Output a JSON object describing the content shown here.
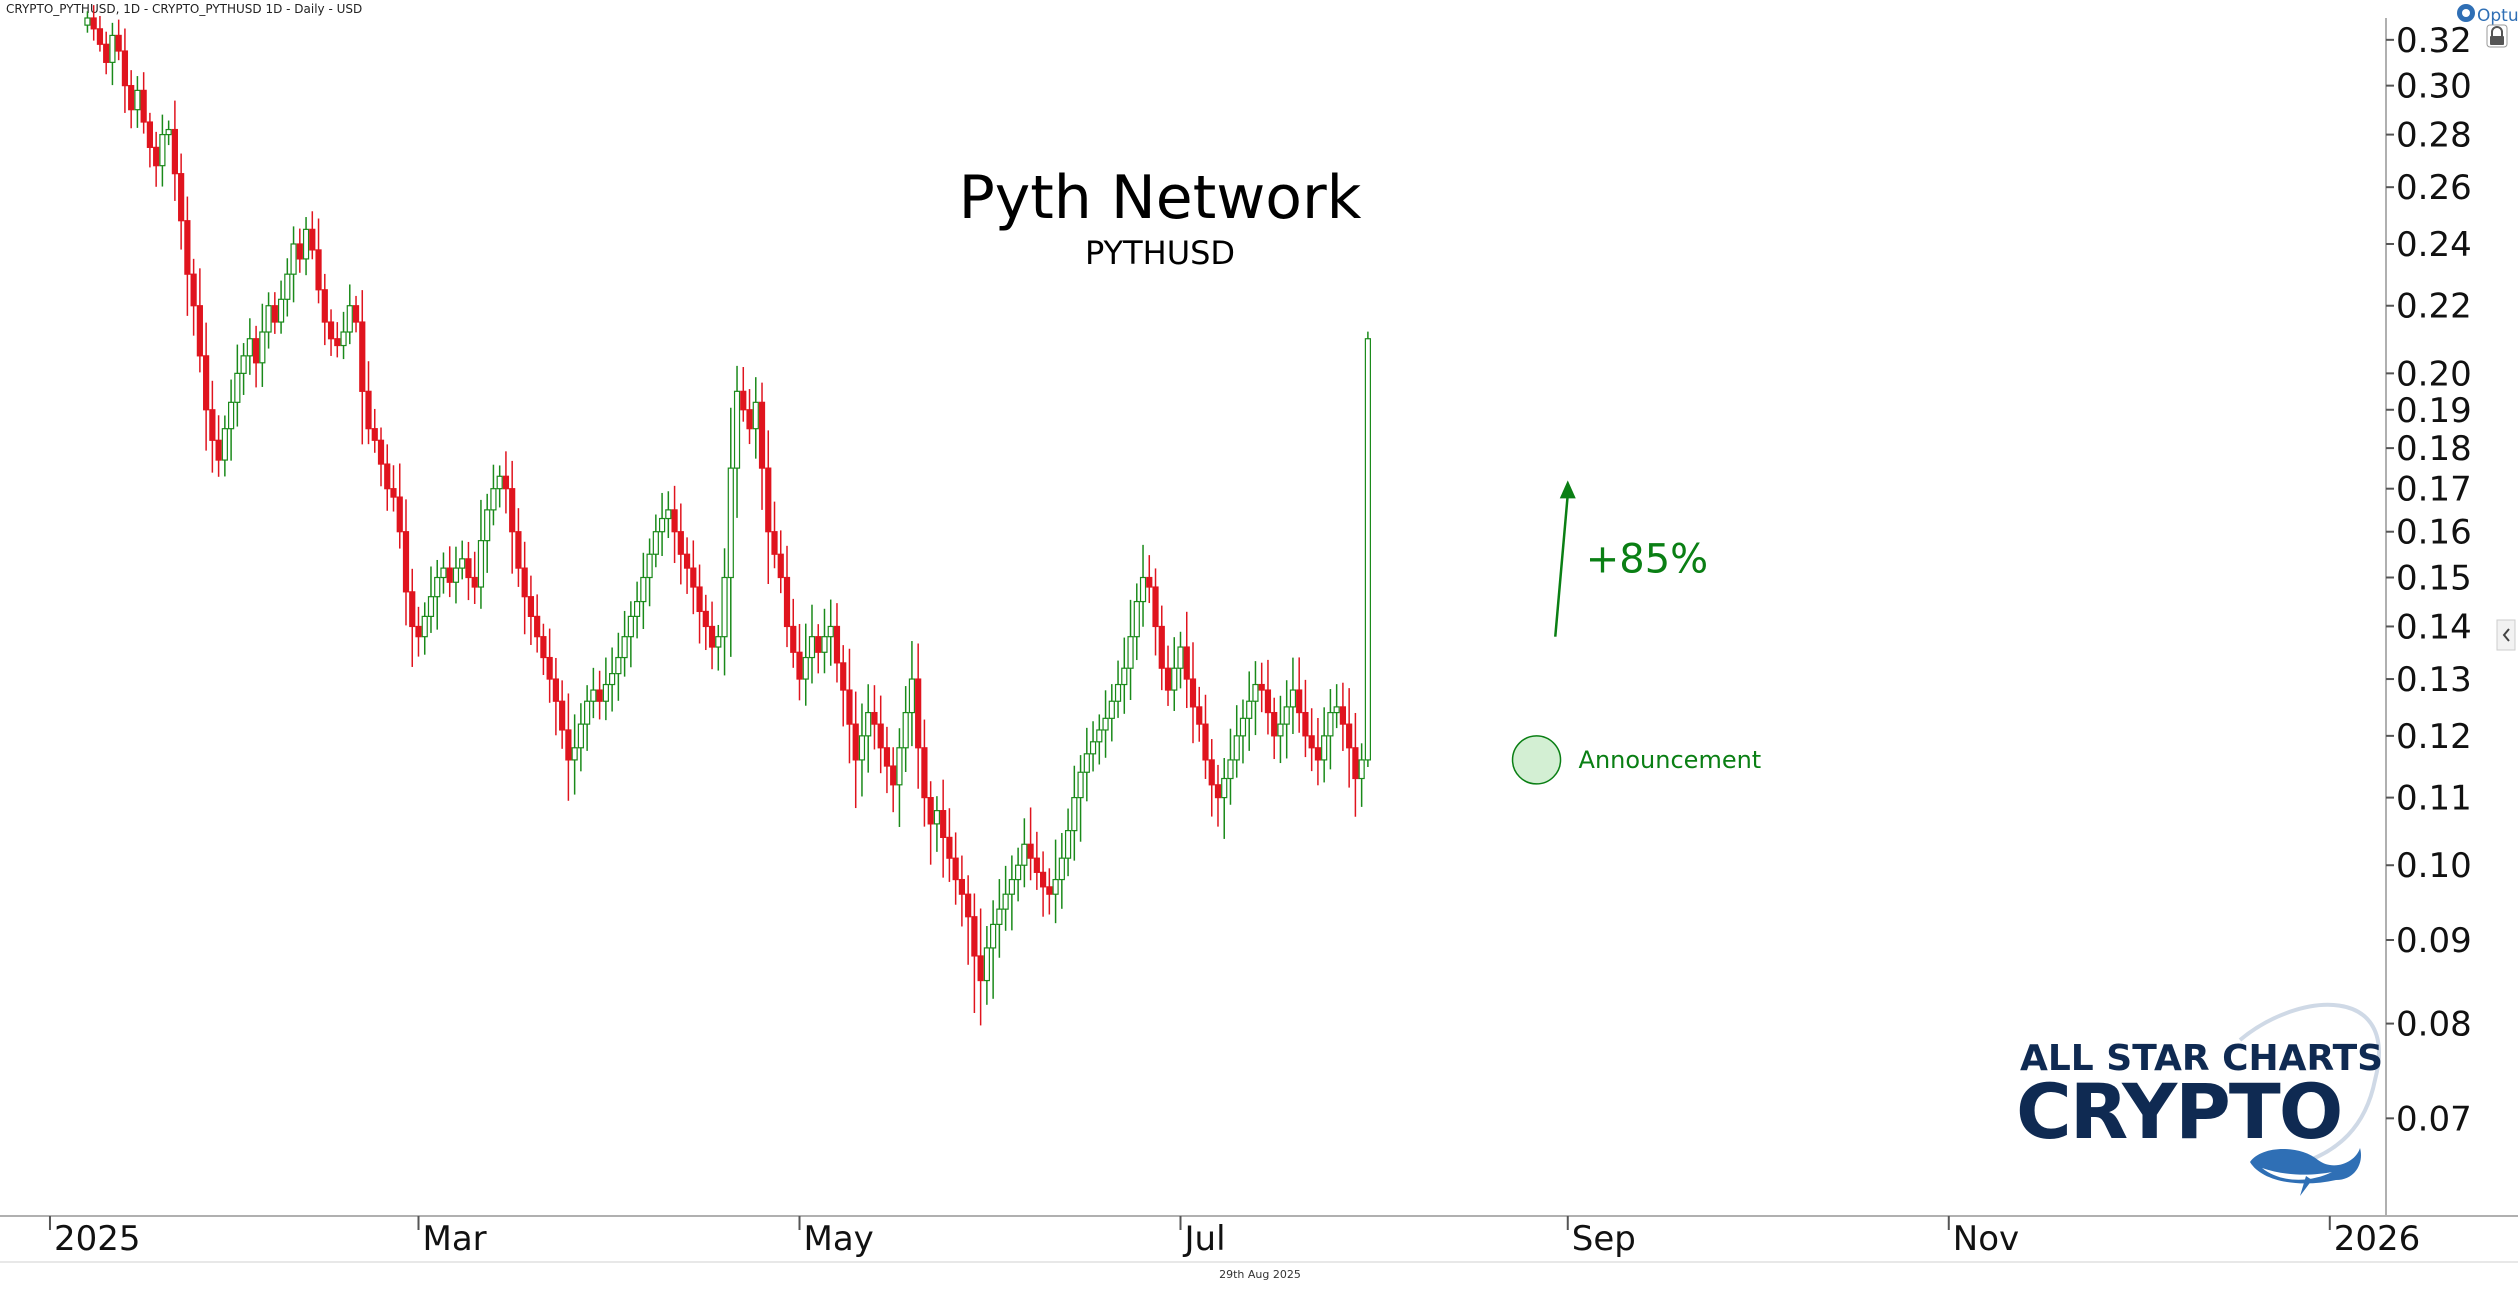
{
  "header": {
    "instrument_info": "CRYPTO_PYTHUSD, 1D - CRYPTO_PYTHUSD 1D - Daily - USD",
    "platform": "Optuma"
  },
  "footer": {
    "date_stamp": "29th Aug 2025"
  },
  "branding": {
    "line1": "ALL STAR CHARTS",
    "line2": "CRYPTO"
  },
  "colors": {
    "up": "#1a8a1a",
    "down": "#e0141e",
    "accent_green": "#0a7f14",
    "brand_navy": "#0f2a52",
    "brand_blue": "#2f6fb5"
  },
  "icons": {
    "lock": "lock-icon",
    "collapse": "chevron-left-icon",
    "platform_logo": "optuma-logo-icon"
  },
  "chart_data": {
    "type": "candlestick",
    "title": "Pyth Network",
    "subtitle": "PYTHUSD",
    "y_scale": "log",
    "ylim": [
      0.061,
      0.33
    ],
    "y_ticks": [
      0.32,
      0.3,
      0.28,
      0.26,
      0.24,
      0.22,
      0.2,
      0.19,
      0.18,
      0.17,
      0.16,
      0.15,
      0.14,
      0.13,
      0.12,
      0.11,
      0.1,
      0.09,
      0.08,
      0.07
    ],
    "x_range": [
      "2024-12-24",
      "2026-01-10"
    ],
    "x_ticks": [
      {
        "label": "2025",
        "date": "2025-01-01"
      },
      {
        "label": "Mar",
        "date": "2025-03-01"
      },
      {
        "label": "May",
        "date": "2025-05-01"
      },
      {
        "label": "Jul",
        "date": "2025-07-01"
      },
      {
        "label": "Sep",
        "date": "2025-09-01"
      },
      {
        "label": "Nov",
        "date": "2025-11-01"
      },
      {
        "label": "2026",
        "date": "2026-01-01"
      }
    ],
    "grid": false,
    "start_date": "2025-01-07",
    "closes": [
      0.33,
      0.325,
      0.318,
      0.31,
      0.322,
      0.315,
      0.3,
      0.29,
      0.298,
      0.285,
      0.275,
      0.268,
      0.28,
      0.282,
      0.265,
      0.248,
      0.23,
      0.22,
      0.205,
      0.19,
      0.182,
      0.177,
      0.185,
      0.192,
      0.2,
      0.205,
      0.21,
      0.203,
      0.212,
      0.22,
      0.215,
      0.222,
      0.23,
      0.24,
      0.235,
      0.245,
      0.238,
      0.225,
      0.215,
      0.21,
      0.208,
      0.212,
      0.22,
      0.215,
      0.195,
      0.185,
      0.182,
      0.176,
      0.17,
      0.168,
      0.16,
      0.147,
      0.14,
      0.138,
      0.142,
      0.146,
      0.15,
      0.152,
      0.149,
      0.152,
      0.154,
      0.15,
      0.148,
      0.158,
      0.165,
      0.17,
      0.173,
      0.17,
      0.16,
      0.152,
      0.146,
      0.142,
      0.138,
      0.134,
      0.13,
      0.126,
      0.121,
      0.116,
      0.118,
      0.122,
      0.126,
      0.128,
      0.126,
      0.129,
      0.131,
      0.134,
      0.138,
      0.142,
      0.145,
      0.15,
      0.155,
      0.16,
      0.163,
      0.165,
      0.16,
      0.155,
      0.152,
      0.148,
      0.143,
      0.14,
      0.136,
      0.138,
      0.15,
      0.175,
      0.195,
      0.19,
      0.185,
      0.192,
      0.175,
      0.16,
      0.155,
      0.15,
      0.14,
      0.135,
      0.13,
      0.134,
      0.138,
      0.135,
      0.138,
      0.14,
      0.133,
      0.128,
      0.122,
      0.116,
      0.12,
      0.124,
      0.122,
      0.118,
      0.115,
      0.112,
      0.118,
      0.124,
      0.13,
      0.118,
      0.11,
      0.106,
      0.108,
      0.104,
      0.101,
      0.098,
      0.096,
      0.093,
      0.088,
      0.085,
      0.089,
      0.092,
      0.094,
      0.096,
      0.098,
      0.1,
      0.103,
      0.101,
      0.099,
      0.097,
      0.096,
      0.098,
      0.101,
      0.105,
      0.11,
      0.114,
      0.117,
      0.119,
      0.121,
      0.123,
      0.126,
      0.129,
      0.132,
      0.138,
      0.145,
      0.15,
      0.148,
      0.14,
      0.132,
      0.128,
      0.132,
      0.136,
      0.13,
      0.125,
      0.122,
      0.116,
      0.112,
      0.11,
      0.113,
      0.116,
      0.12,
      0.123,
      0.126,
      0.129,
      0.128,
      0.124,
      0.12,
      0.122,
      0.125,
      0.128,
      0.124,
      0.12,
      0.118,
      0.116,
      0.12,
      0.124,
      0.125,
      0.122,
      0.118,
      0.113,
      0.116,
      0.21
    ],
    "annotations": [
      {
        "type": "circle",
        "label": "Announcement",
        "date": "2025-08-27",
        "price": 0.116
      },
      {
        "type": "arrow",
        "label": "+85%",
        "from_date": "2025-08-30",
        "from_price": 0.138,
        "to_date": "2025-09-01",
        "to_price": 0.172
      }
    ]
  }
}
